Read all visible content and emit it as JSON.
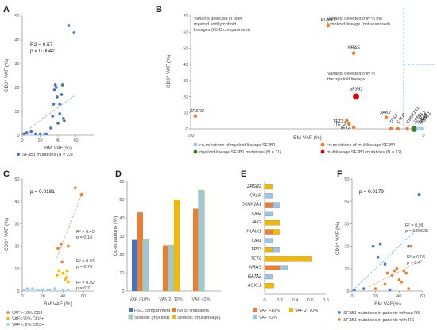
{
  "colors": {
    "blue": "#4472C4",
    "orange": "#ED7D31",
    "gold": "#F5B800",
    "lightblue": "#9DC3E6",
    "lightgreen": "#A9D18E",
    "darkgreen": "#3A7D2C",
    "red": "#D90000",
    "sky": "#5B9BD5"
  },
  "panels": {
    "A": {
      "letter": "A",
      "stats": [
        "R2 = 0.57",
        "p = 0.0042"
      ],
      "ylabel": "CD3⁺ VAF (%)",
      "xlabel": "BM VAF(%)",
      "legend_gene": "SF3B1",
      "legend_rest": " mutations (N = 23)"
    },
    "B": {
      "letter": "B",
      "ylabel": "CD3⁺ VAF (%)",
      "xlabel": "BM VAF (%)",
      "box1": [
        "Variants detected in both",
        "myeloid and lymphoid",
        "lineages (HSC compartment)"
      ],
      "box2": [
        "Variants detected only in the",
        "lymphoid lineage (not assessed)"
      ],
      "box3": [
        "Variants detected only in",
        "the myeloid lineage"
      ],
      "legend": [
        "co-mutations of myeloid lineage SF3B1",
        "co-mutations of multilineage SF3B1",
        "myeloid lineage SF3B1 mutations (N = 11)",
        "multilineage SF3B1 mutations (N = 12)"
      ]
    },
    "C": {
      "letter": "C",
      "stat": "p = 0.0181",
      "ylabel": "CD3⁺ VAF (%)",
      "xlabel": "BM VAF (%)",
      "fits": [
        {
          "r2": "R² = 0.45",
          "p": "p = 0.14"
        },
        {
          "r2": "R² = 0.03",
          "p": "p = 0.74"
        },
        {
          "r2": "R² = 0.02",
          "p": "p = 0.71"
        }
      ],
      "legend": [
        "VAF >10% CD3+",
        "VAF<10% CD3+",
        "VAF < 2% CD3+"
      ]
    },
    "D": {
      "letter": "D",
      "ylabel": "Co-mutations (%)",
      "legend": [
        "HSC compartment",
        "No co-mutations",
        "Somatic (myeloid)",
        "Somatic (multilineage)"
      ]
    },
    "E": {
      "letter": "E",
      "legend": [
        "VAF >10%",
        "VAF 2- 10%",
        "VAF <2%"
      ]
    },
    "F": {
      "letter": "F",
      "stat": "p = 0.0179",
      "ylabel": "CD3⁺ VAF (%)",
      "xlabel": "BM VAF(%)",
      "fits": [
        {
          "r2": "R² = 0.91",
          "p": "p = 0.00025"
        },
        {
          "r2": "R² = 0.08",
          "p": "p = 0.4"
        }
      ],
      "legend_gene": "SF3B1",
      "legend_rest": [
        " mutations in patients without RS",
        " mutations in patients with RS"
      ]
    }
  },
  "chart_data": [
    {
      "panel": "A",
      "type": "scatter",
      "xlim": [
        0,
        80
      ],
      "ylim": [
        0,
        50
      ],
      "xticks": [
        0,
        20,
        40,
        60
      ],
      "yticks": [
        0,
        10,
        20,
        30,
        40,
        50
      ],
      "series": [
        {
          "points": [
            [
              2,
              0.5
            ],
            [
              5,
              1
            ],
            [
              10,
              1.5
            ],
            [
              15,
              0.5
            ],
            [
              20,
              0.5
            ],
            [
              25,
              0.5
            ],
            [
              27,
              0.5
            ],
            [
              32,
              3
            ],
            [
              34,
              8
            ],
            [
              35,
              13
            ],
            [
              36,
              19
            ],
            [
              37,
              21
            ],
            [
              38,
              20
            ],
            [
              39,
              16
            ],
            [
              40,
              5
            ],
            [
              42,
              9
            ],
            [
              42,
              13
            ],
            [
              44,
              17
            ],
            [
              45,
              21
            ],
            [
              46,
              7
            ],
            [
              47,
              6
            ],
            [
              52,
              46
            ],
            [
              58,
              43
            ]
          ]
        }
      ],
      "trendline": [
        [
          5,
          2
        ],
        [
          60,
          17
        ]
      ]
    },
    {
      "panel": "B",
      "type": "scatter",
      "xlim": [
        100,
        0
      ],
      "ylim": [
        0,
        70
      ],
      "xticks": [
        100,
        0
      ],
      "yticks": [
        0,
        10,
        20,
        30,
        40,
        50,
        60,
        70
      ],
      "labels": [
        {
          "name": "RUNX1",
          "x": 41,
          "y": 64,
          "group": "multilineage-co"
        },
        {
          "name": "NRAS",
          "x": 30,
          "y": 47,
          "group": "multilineage-co"
        },
        {
          "name": "SF3B1",
          "x": 29,
          "y": 20,
          "group": "multilineage"
        },
        {
          "name": "ZRSR2",
          "x": 98,
          "y": 8,
          "group": "multilineage-co"
        },
        {
          "name": "JAK2",
          "x": 16,
          "y": 7,
          "group": "multilineage-co"
        },
        {
          "name": "TET2",
          "x": 33,
          "y": 5,
          "group": "multilineage-co"
        },
        {
          "name": "TET2",
          "x": 32,
          "y": 3,
          "group": "multilineage-co"
        },
        {
          "name": "TET2",
          "x": 30,
          "y": 1,
          "group": "multilineage-co"
        },
        {
          "name": "TP53",
          "x": 14,
          "y": 0,
          "group": "multilineage-co"
        },
        {
          "name": "CALR",
          "x": 11,
          "y": 0,
          "group": "multilineage-co"
        },
        {
          "name": "CSNK1A1",
          "x": 7,
          "y": 0,
          "group": "multilineage-co"
        },
        {
          "name": "SF3B1",
          "x": 4,
          "y": 0,
          "group": "myeloid"
        },
        {
          "name": "GATA2",
          "x": 2.5,
          "y": 0,
          "group": "myeloid-co"
        },
        {
          "name": "NRAS",
          "x": 1.5,
          "y": 0,
          "group": "myeloid-co"
        },
        {
          "name": "IDH1",
          "x": 1,
          "y": 0,
          "group": "myeloid-co"
        },
        {
          "name": "ASXL1",
          "x": 0.5,
          "y": 0,
          "group": "myeloid-co"
        }
      ]
    },
    {
      "panel": "C",
      "type": "scatter",
      "xlim": [
        0,
        70
      ],
      "ylim": [
        0,
        50
      ],
      "xticks": [
        0,
        20,
        40,
        60
      ],
      "yticks": [
        0,
        10,
        20,
        30,
        40,
        50
      ],
      "series": [
        {
          "name": "VAF >10% CD3+",
          "points": [
            [
              35,
              19
            ],
            [
              38,
              21
            ],
            [
              39,
              13
            ],
            [
              45,
              20
            ],
            [
              52,
              46
            ],
            [
              58,
              43
            ]
          ]
        },
        {
          "name": "VAF<10% CD3+",
          "points": [
            [
              34,
              7
            ],
            [
              36,
              9
            ],
            [
              40,
              8
            ],
            [
              42,
              5
            ],
            [
              43,
              6
            ],
            [
              44,
              9
            ],
            [
              45,
              4
            ]
          ]
        },
        {
          "name": "VAF < 2% CD3+",
          "points": [
            [
              2,
              0.5
            ],
            [
              5,
              1
            ],
            [
              10,
              1
            ],
            [
              15,
              0.5
            ],
            [
              20,
              0.5
            ],
            [
              25,
              0.5
            ],
            [
              27,
              0.5
            ],
            [
              32,
              1
            ],
            [
              40,
              0.5
            ],
            [
              45,
              0.5
            ]
          ]
        }
      ]
    },
    {
      "panel": "D",
      "type": "bar",
      "ylim": [
        0,
        60
      ],
      "yticks": [
        0,
        10,
        20,
        30,
        40,
        50,
        60
      ],
      "categories": [
        "VAF >10%",
        "VAF 2- 10%",
        "VAF <2%"
      ],
      "series": [
        {
          "name": "HSC compartment",
          "values": [
            28,
            null,
            null
          ]
        },
        {
          "name": "No co-mutations",
          "values": [
            43,
            25,
            45
          ]
        },
        {
          "name": "Somatic (myeloid)",
          "values": [
            28,
            25,
            55
          ]
        },
        {
          "name": "Somatic (multilineage)",
          "values": [
            null,
            50,
            null
          ]
        }
      ]
    },
    {
      "panel": "E",
      "type": "bar",
      "orientation": "horizontal",
      "xlim": [
        0,
        0.8
      ],
      "xticks": [
        0,
        0.2,
        0.4,
        0.6,
        0.8
      ],
      "categories": [
        "ZRSR2",
        "CALR",
        "CSNK1A1",
        "IDH2",
        "JAK2",
        "RUNX1",
        "IDH1",
        "TP53",
        "TET2",
        "NRAS",
        "GATA2",
        "ASXL1"
      ],
      "series": [
        {
          "name": "VAF >10%",
          "values": [
            0,
            0,
            0.1,
            0,
            0,
            0.1,
            0,
            0,
            0,
            0.2,
            0,
            0
          ]
        },
        {
          "name": "VAF 2- 10%",
          "values": [
            0.1,
            0,
            0,
            0,
            0.2,
            0.1,
            0,
            0.1,
            0.62,
            0,
            0,
            0.12
          ]
        },
        {
          "name": "VAF <2%",
          "values": [
            0,
            0.1,
            0.1,
            0.1,
            0,
            0,
            0.1,
            0.1,
            0,
            0.1,
            0.1,
            0
          ]
        }
      ]
    },
    {
      "panel": "F",
      "type": "scatter",
      "xlim": [
        0,
        60
      ],
      "ylim": [
        0,
        50
      ],
      "xticks": [
        0,
        20,
        40,
        60
      ],
      "yticks": [
        0,
        10,
        20,
        30,
        40,
        50
      ],
      "series": [
        {
          "name": "without RS",
          "points": [
            [
              2,
              0.5
            ],
            [
              10,
              1
            ],
            [
              18,
              20
            ],
            [
              22,
              15
            ],
            [
              24,
              21
            ],
            [
              28,
              12
            ],
            [
              32,
              0.5
            ],
            [
              48,
              20
            ],
            [
              57,
              43
            ]
          ]
        },
        {
          "name": "with RS",
          "points": [
            [
              20,
              1
            ],
            [
              28,
              3
            ],
            [
              30,
              8
            ],
            [
              34,
              7
            ],
            [
              36,
              9
            ],
            [
              38,
              10
            ],
            [
              40,
              5
            ],
            [
              42,
              4
            ],
            [
              44,
              9
            ],
            [
              46,
              8
            ],
            [
              48,
              1
            ],
            [
              50,
              20
            ]
          ]
        }
      ],
      "trendlines": [
        {
          "series": "without RS",
          "from": [
            0,
            0
          ],
          "to": [
            60,
            30
          ]
        },
        {
          "series": "with RS",
          "from": [
            15,
            2
          ],
          "to": [
            60,
            14
          ]
        }
      ]
    }
  ]
}
